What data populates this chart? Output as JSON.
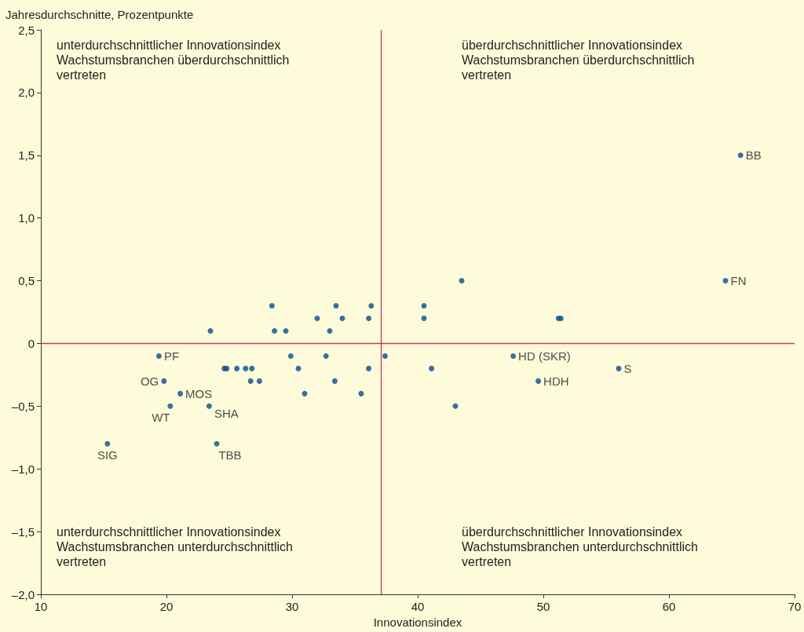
{
  "chart_data": {
    "type": "scatter",
    "xlabel": "Innovationsindex",
    "ylabel": "Jahresdurchschnitte, Prozentpunkte",
    "xlim": [
      10,
      70
    ],
    "xticks": [
      10,
      20,
      30,
      40,
      50,
      60,
      70
    ],
    "ylim": [
      -2.0,
      2.5
    ],
    "yticks": [
      {
        "value": -2.0,
        "label": "–2,0"
      },
      {
        "value": -1.5,
        "label": "–1,5"
      },
      {
        "value": -1.0,
        "label": "–1,0"
      },
      {
        "value": -0.5,
        "label": "–0,5"
      },
      {
        "value": 0,
        "label": "0"
      },
      {
        "value": 0.5,
        "label": "0,5"
      },
      {
        "value": 1.0,
        "label": "1,0"
      },
      {
        "value": 1.5,
        "label": "1,5"
      },
      {
        "value": 2.0,
        "label": "2,0"
      },
      {
        "value": 2.5,
        "label": "2,5"
      }
    ],
    "marker": "circle",
    "grid": false,
    "series": [
      {
        "color": "#00508c",
        "x": [
          65.7,
          64.5,
          43.5,
          40.5,
          40.5,
          51.2,
          51.4,
          36.3,
          36.1,
          37.4,
          36.1,
          35.5,
          41.1,
          43.0,
          47.6,
          49.6,
          56.0,
          28.4,
          33.5,
          32.0,
          34.0,
          23.5,
          28.6,
          29.5,
          33.0,
          19.4,
          29.9,
          32.7,
          24.6,
          24.8,
          25.6,
          26.3,
          26.8,
          30.5,
          19.8,
          26.7,
          27.4,
          33.4,
          21.1,
          31.0,
          20.3,
          23.4,
          24.0,
          15.3
        ],
        "values": [
          1.5,
          0.5,
          0.5,
          0.3,
          0.2,
          0.2,
          0.2,
          0.3,
          0.2,
          -0.1,
          -0.2,
          -0.4,
          -0.2,
          -0.5,
          -0.1,
          -0.3,
          -0.2,
          0.3,
          0.3,
          0.2,
          0.2,
          0.1,
          0.1,
          0.1,
          0.1,
          -0.1,
          -0.1,
          -0.1,
          -0.2,
          -0.2,
          -0.2,
          -0.2,
          -0.2,
          -0.2,
          -0.3,
          -0.3,
          -0.3,
          -0.3,
          -0.4,
          -0.4,
          -0.5,
          -0.5,
          -0.8,
          -0.8
        ],
        "value_labels": [
          "BB",
          "FN",
          null,
          null,
          null,
          null,
          null,
          null,
          null,
          null,
          null,
          null,
          null,
          null,
          "HD (SKR)",
          "HDH",
          "S",
          null,
          null,
          null,
          null,
          null,
          null,
          null,
          null,
          "PF",
          null,
          null,
          null,
          null,
          null,
          null,
          null,
          null,
          "OG",
          null,
          null,
          null,
          "MOS",
          null,
          "WT",
          "SHA",
          "TBB",
          "SIG"
        ]
      }
    ],
    "ref_lines": [
      {
        "axis": "x",
        "value": 37.1,
        "color": "#d6335b"
      },
      {
        "axis": "y",
        "value": 0,
        "color": "#d6335b"
      }
    ],
    "annotations": [
      "unterdurchschnittlicher Innovationsindex\nWachstumsbranchen überdurchschnittlich\nvertreten",
      "überdurchschnittlicher Innovationsindex\nWachstumsbranchen überdurchschnittlich\nvertreten",
      "unterdurchschnittlicher Innovationsindex\nWachstumsbranchen unterdurchschnittlich\nvertreten",
      "überdurchschnittlicher Innovationsindex\nWachstumsbranchen unterdurchschnittlich\nvertreten"
    ]
  }
}
